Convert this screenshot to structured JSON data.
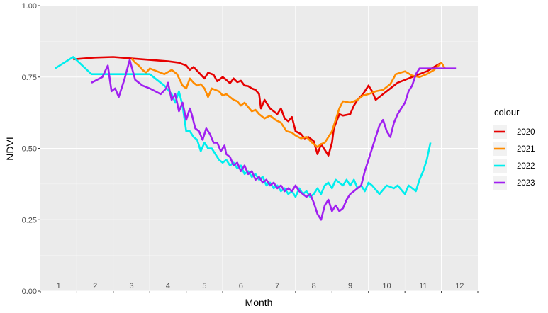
{
  "chart_data": {
    "type": "line",
    "xlabel": "Month",
    "ylabel": "NDVI",
    "ylim": [
      0,
      1
    ],
    "xlim": [
      0,
      12
    ],
    "y_ticks": [
      "0.00",
      "0.25",
      "0.50",
      "0.75",
      "1.00"
    ],
    "x_tick_labels": [
      "1",
      "2",
      "3",
      "4",
      "5",
      "6",
      "7",
      "8",
      "9",
      "10",
      "11",
      "12"
    ],
    "grid": true,
    "legend": {
      "title": "colour",
      "position": "right"
    },
    "series": [
      {
        "name": "2020",
        "color": "#e60000",
        "points": [
          [
            0.9,
            0.812
          ],
          [
            1.5,
            0.818
          ],
          [
            2.0,
            0.82
          ],
          [
            2.5,
            0.815
          ],
          [
            3.0,
            0.81
          ],
          [
            3.5,
            0.805
          ],
          [
            3.8,
            0.8
          ],
          [
            4.0,
            0.79
          ],
          [
            4.1,
            0.775
          ],
          [
            4.2,
            0.785
          ],
          [
            4.35,
            0.765
          ],
          [
            4.5,
            0.745
          ],
          [
            4.6,
            0.765
          ],
          [
            4.75,
            0.758
          ],
          [
            4.85,
            0.735
          ],
          [
            5.0,
            0.75
          ],
          [
            5.1,
            0.74
          ],
          [
            5.2,
            0.728
          ],
          [
            5.3,
            0.745
          ],
          [
            5.4,
            0.732
          ],
          [
            5.5,
            0.737
          ],
          [
            5.6,
            0.72
          ],
          [
            5.7,
            0.718
          ],
          [
            5.8,
            0.71
          ],
          [
            5.9,
            0.705
          ],
          [
            6.0,
            0.69
          ],
          [
            6.05,
            0.64
          ],
          [
            6.15,
            0.67
          ],
          [
            6.3,
            0.64
          ],
          [
            6.5,
            0.62
          ],
          [
            6.6,
            0.64
          ],
          [
            6.7,
            0.605
          ],
          [
            6.8,
            0.595
          ],
          [
            6.9,
            0.61
          ],
          [
            7.0,
            0.56
          ],
          [
            7.15,
            0.55
          ],
          [
            7.25,
            0.535
          ],
          [
            7.35,
            0.54
          ],
          [
            7.5,
            0.525
          ],
          [
            7.6,
            0.48
          ],
          [
            7.7,
            0.515
          ],
          [
            7.8,
            0.495
          ],
          [
            7.9,
            0.475
          ],
          [
            8.0,
            0.52
          ],
          [
            8.05,
            0.57
          ],
          [
            8.2,
            0.62
          ],
          [
            8.3,
            0.615
          ],
          [
            8.5,
            0.62
          ],
          [
            8.6,
            0.65
          ],
          [
            8.7,
            0.67
          ],
          [
            8.85,
            0.69
          ],
          [
            9.0,
            0.72
          ],
          [
            9.1,
            0.7
          ],
          [
            9.2,
            0.67
          ],
          [
            9.4,
            0.69
          ],
          [
            9.6,
            0.71
          ],
          [
            9.8,
            0.73
          ],
          [
            10.0,
            0.74
          ],
          [
            10.3,
            0.755
          ],
          [
            10.6,
            0.77
          ],
          [
            10.8,
            0.785
          ],
          [
            11.0,
            0.8
          ]
        ]
      },
      {
        "name": "2021",
        "color": "#ff8c00",
        "points": [
          [
            2.5,
            0.815
          ],
          [
            2.6,
            0.8
          ],
          [
            2.7,
            0.79
          ],
          [
            2.8,
            0.775
          ],
          [
            2.9,
            0.765
          ],
          [
            3.0,
            0.78
          ],
          [
            3.2,
            0.77
          ],
          [
            3.4,
            0.76
          ],
          [
            3.6,
            0.775
          ],
          [
            3.75,
            0.76
          ],
          [
            3.9,
            0.72
          ],
          [
            4.0,
            0.71
          ],
          [
            4.1,
            0.745
          ],
          [
            4.2,
            0.73
          ],
          [
            4.3,
            0.72
          ],
          [
            4.4,
            0.725
          ],
          [
            4.5,
            0.71
          ],
          [
            4.6,
            0.68
          ],
          [
            4.7,
            0.71
          ],
          [
            4.8,
            0.705
          ],
          [
            4.9,
            0.7
          ],
          [
            5.0,
            0.685
          ],
          [
            5.1,
            0.69
          ],
          [
            5.2,
            0.68
          ],
          [
            5.3,
            0.67
          ],
          [
            5.4,
            0.665
          ],
          [
            5.5,
            0.65
          ],
          [
            5.6,
            0.66
          ],
          [
            5.7,
            0.645
          ],
          [
            5.8,
            0.63
          ],
          [
            5.9,
            0.635
          ],
          [
            6.0,
            0.62
          ],
          [
            6.15,
            0.605
          ],
          [
            6.3,
            0.615
          ],
          [
            6.45,
            0.6
          ],
          [
            6.6,
            0.59
          ],
          [
            6.75,
            0.56
          ],
          [
            6.9,
            0.555
          ],
          [
            7.0,
            0.545
          ],
          [
            7.15,
            0.535
          ],
          [
            7.3,
            0.54
          ],
          [
            7.45,
            0.52
          ],
          [
            7.6,
            0.505
          ],
          [
            7.7,
            0.515
          ],
          [
            7.8,
            0.52
          ],
          [
            7.9,
            0.54
          ],
          [
            8.0,
            0.56
          ],
          [
            8.1,
            0.6
          ],
          [
            8.2,
            0.64
          ],
          [
            8.3,
            0.665
          ],
          [
            8.5,
            0.66
          ],
          [
            8.7,
            0.67
          ],
          [
            8.85,
            0.685
          ],
          [
            9.0,
            0.69
          ],
          [
            9.2,
            0.7
          ],
          [
            9.4,
            0.705
          ],
          [
            9.6,
            0.725
          ],
          [
            9.75,
            0.76
          ],
          [
            10.0,
            0.77
          ],
          [
            10.2,
            0.755
          ],
          [
            10.4,
            0.75
          ],
          [
            10.6,
            0.76
          ],
          [
            10.8,
            0.775
          ],
          [
            11.0,
            0.8
          ],
          [
            11.1,
            0.78
          ]
        ]
      },
      {
        "name": "2022",
        "color": "#00eeee",
        "points": [
          [
            0.4,
            0.78
          ],
          [
            0.9,
            0.82
          ],
          [
            1.4,
            0.76
          ],
          [
            2.0,
            0.76
          ],
          [
            2.5,
            0.76
          ],
          [
            3.0,
            0.76
          ],
          [
            3.2,
            0.74
          ],
          [
            3.4,
            0.72
          ],
          [
            3.6,
            0.69
          ],
          [
            3.7,
            0.66
          ],
          [
            3.8,
            0.7
          ],
          [
            3.9,
            0.65
          ],
          [
            4.0,
            0.56
          ],
          [
            4.1,
            0.56
          ],
          [
            4.2,
            0.54
          ],
          [
            4.3,
            0.53
          ],
          [
            4.4,
            0.49
          ],
          [
            4.5,
            0.52
          ],
          [
            4.6,
            0.5
          ],
          [
            4.7,
            0.5
          ],
          [
            4.8,
            0.48
          ],
          [
            4.9,
            0.46
          ],
          [
            5.0,
            0.45
          ],
          [
            5.1,
            0.46
          ],
          [
            5.2,
            0.44
          ],
          [
            5.3,
            0.45
          ],
          [
            5.4,
            0.43
          ],
          [
            5.5,
            0.44
          ],
          [
            5.6,
            0.41
          ],
          [
            5.7,
            0.42
          ],
          [
            5.8,
            0.4
          ],
          [
            5.9,
            0.41
          ],
          [
            6.0,
            0.39
          ],
          [
            6.1,
            0.4
          ],
          [
            6.2,
            0.37
          ],
          [
            6.3,
            0.38
          ],
          [
            6.4,
            0.36
          ],
          [
            6.5,
            0.37
          ],
          [
            6.6,
            0.35
          ],
          [
            6.7,
            0.36
          ],
          [
            6.8,
            0.34
          ],
          [
            6.9,
            0.35
          ],
          [
            7.0,
            0.33
          ],
          [
            7.1,
            0.36
          ],
          [
            7.2,
            0.34
          ],
          [
            7.3,
            0.35
          ],
          [
            7.4,
            0.33
          ],
          [
            7.5,
            0.34
          ],
          [
            7.6,
            0.36
          ],
          [
            7.7,
            0.34
          ],
          [
            7.8,
            0.37
          ],
          [
            7.9,
            0.38
          ],
          [
            8.0,
            0.36
          ],
          [
            8.1,
            0.39
          ],
          [
            8.2,
            0.38
          ],
          [
            8.3,
            0.37
          ],
          [
            8.4,
            0.39
          ],
          [
            8.5,
            0.37
          ],
          [
            8.6,
            0.39
          ],
          [
            8.7,
            0.36
          ],
          [
            8.8,
            0.37
          ],
          [
            8.9,
            0.35
          ],
          [
            9.0,
            0.38
          ],
          [
            9.1,
            0.37
          ],
          [
            9.3,
            0.34
          ],
          [
            9.5,
            0.37
          ],
          [
            9.7,
            0.36
          ],
          [
            9.8,
            0.37
          ],
          [
            10.0,
            0.34
          ],
          [
            10.1,
            0.37
          ],
          [
            10.2,
            0.36
          ],
          [
            10.3,
            0.35
          ],
          [
            10.4,
            0.39
          ],
          [
            10.5,
            0.42
          ],
          [
            10.6,
            0.46
          ],
          [
            10.7,
            0.52
          ]
        ]
      },
      {
        "name": "2023",
        "color": "#a020f0",
        "points": [
          [
            1.4,
            0.73
          ],
          [
            1.7,
            0.75
          ],
          [
            1.85,
            0.79
          ],
          [
            1.95,
            0.7
          ],
          [
            2.05,
            0.71
          ],
          [
            2.15,
            0.68
          ],
          [
            2.3,
            0.74
          ],
          [
            2.45,
            0.81
          ],
          [
            2.6,
            0.74
          ],
          [
            2.8,
            0.72
          ],
          [
            3.0,
            0.71
          ],
          [
            3.15,
            0.7
          ],
          [
            3.3,
            0.69
          ],
          [
            3.45,
            0.71
          ],
          [
            3.5,
            0.73
          ],
          [
            3.55,
            0.7
          ],
          [
            3.6,
            0.67
          ],
          [
            3.7,
            0.69
          ],
          [
            3.8,
            0.63
          ],
          [
            3.9,
            0.66
          ],
          [
            4.0,
            0.6
          ],
          [
            4.1,
            0.64
          ],
          [
            4.15,
            0.62
          ],
          [
            4.25,
            0.57
          ],
          [
            4.35,
            0.56
          ],
          [
            4.45,
            0.53
          ],
          [
            4.55,
            0.57
          ],
          [
            4.65,
            0.55
          ],
          [
            4.75,
            0.52
          ],
          [
            4.85,
            0.52
          ],
          [
            4.95,
            0.49
          ],
          [
            5.05,
            0.51
          ],
          [
            5.1,
            0.48
          ],
          [
            5.2,
            0.47
          ],
          [
            5.3,
            0.44
          ],
          [
            5.4,
            0.45
          ],
          [
            5.5,
            0.42
          ],
          [
            5.6,
            0.44
          ],
          [
            5.7,
            0.41
          ],
          [
            5.8,
            0.42
          ],
          [
            5.9,
            0.39
          ],
          [
            6.0,
            0.4
          ],
          [
            6.1,
            0.38
          ],
          [
            6.2,
            0.39
          ],
          [
            6.3,
            0.37
          ],
          [
            6.4,
            0.38
          ],
          [
            6.5,
            0.36
          ],
          [
            6.6,
            0.37
          ],
          [
            6.7,
            0.35
          ],
          [
            6.8,
            0.36
          ],
          [
            6.9,
            0.35
          ],
          [
            7.0,
            0.37
          ],
          [
            7.1,
            0.35
          ],
          [
            7.2,
            0.34
          ],
          [
            7.3,
            0.33
          ],
          [
            7.4,
            0.34
          ],
          [
            7.5,
            0.31
          ],
          [
            7.6,
            0.27
          ],
          [
            7.7,
            0.25
          ],
          [
            7.8,
            0.3
          ],
          [
            7.9,
            0.32
          ],
          [
            8.0,
            0.28
          ],
          [
            8.1,
            0.3
          ],
          [
            8.2,
            0.28
          ],
          [
            8.3,
            0.29
          ],
          [
            8.4,
            0.32
          ],
          [
            8.5,
            0.34
          ],
          [
            8.6,
            0.35
          ],
          [
            8.7,
            0.36
          ],
          [
            8.8,
            0.37
          ],
          [
            8.9,
            0.42
          ],
          [
            9.0,
            0.46
          ],
          [
            9.1,
            0.5
          ],
          [
            9.2,
            0.54
          ],
          [
            9.3,
            0.58
          ],
          [
            9.4,
            0.6
          ],
          [
            9.5,
            0.56
          ],
          [
            9.6,
            0.54
          ],
          [
            9.7,
            0.59
          ],
          [
            9.8,
            0.62
          ],
          [
            9.9,
            0.64
          ],
          [
            10.0,
            0.66
          ],
          [
            10.1,
            0.7
          ],
          [
            10.2,
            0.72
          ],
          [
            10.25,
            0.74
          ],
          [
            10.3,
            0.76
          ],
          [
            10.4,
            0.78
          ],
          [
            10.6,
            0.78
          ],
          [
            11.4,
            0.78
          ]
        ]
      }
    ]
  }
}
